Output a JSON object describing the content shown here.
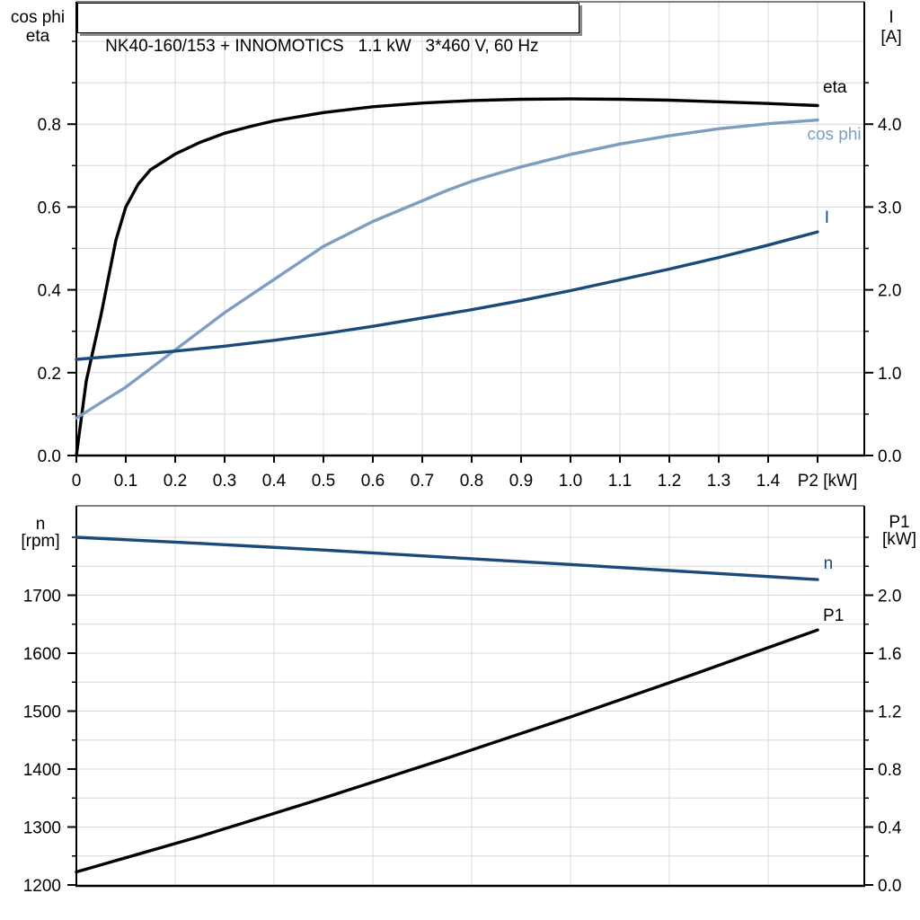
{
  "title_box": {
    "text": "NK40-160/153 + INNOMOTICS   1.1 kW   3*460 V, 60 Hz"
  },
  "colors": {
    "black": "#000000",
    "dark_blue": "#1b4a78",
    "light_blue": "#7e9ec1",
    "grid": "#d6d8db",
    "axis": "#000000",
    "shadow": "#8a8a8a",
    "background": "#ffffff"
  },
  "chart_data": [
    {
      "id": "p2",
      "type": "line",
      "title": "Motor performance vs output power",
      "x_axis": {
        "label": "P2 [kW]",
        "min": 0,
        "max": 1.595,
        "grid_step": 0.1,
        "grid_max": 1.5,
        "tick_step": 0.1,
        "tick_max": 1.5,
        "tick_labels": [
          {
            "v": 0,
            "t": "0"
          },
          {
            "v": 0.1,
            "t": "0.1"
          },
          {
            "v": 0.2,
            "t": "0.2"
          },
          {
            "v": 0.3,
            "t": "0.3"
          },
          {
            "v": 0.4,
            "t": "0.4"
          },
          {
            "v": 0.5,
            "t": "0.5"
          },
          {
            "v": 0.6,
            "t": "0.6"
          },
          {
            "v": 0.7,
            "t": "0.7"
          },
          {
            "v": 0.8,
            "t": "0.8"
          },
          {
            "v": 0.9,
            "t": "0.9"
          },
          {
            "v": 1.0,
            "t": "1.0"
          },
          {
            "v": 1.1,
            "t": "1.1"
          },
          {
            "v": 1.2,
            "t": "1.2"
          },
          {
            "v": 1.3,
            "t": "1.3"
          },
          {
            "v": 1.4,
            "t": "1.4"
          }
        ],
        "axis_label_at": 1.52
      },
      "left_axis": {
        "title_lines": [
          "cos phi",
          "eta"
        ],
        "min": 0,
        "max": 1.08,
        "major_step": 0.2,
        "minor_step": 0.1,
        "minor_max": 1.0,
        "grid_min": 0.1,
        "grid_max": 1.0,
        "grid_step": 0.1,
        "tick_labels": [
          {
            "v": 0,
            "t": "0.0"
          },
          {
            "v": 0.2,
            "t": "0.2"
          },
          {
            "v": 0.4,
            "t": "0.4"
          },
          {
            "v": 0.6,
            "t": "0.6"
          },
          {
            "v": 0.8,
            "t": "0.8"
          }
        ]
      },
      "right_axis": {
        "title_lines": [
          "I",
          "[A]"
        ],
        "min": 0,
        "max": 5.4,
        "major_step": 1.0,
        "minor_step": 0.5,
        "minor_max": 4.5,
        "tick_labels": [
          {
            "v": 0,
            "t": "0.0"
          },
          {
            "v": 1,
            "t": "1.0"
          },
          {
            "v": 2,
            "t": "2.0"
          },
          {
            "v": 3,
            "t": "3.0"
          },
          {
            "v": 4,
            "t": "4.0"
          }
        ]
      },
      "series": [
        {
          "name": "eta",
          "label": "eta",
          "axis": "left",
          "color": "#000000",
          "label_at": [
            1.511,
            0.876
          ],
          "points": [
            [
              0,
              0
            ],
            [
              0.02,
              0.18
            ],
            [
              0.05,
              0.34
            ],
            [
              0.08,
              0.52
            ],
            [
              0.1,
              0.6
            ],
            [
              0.125,
              0.655
            ],
            [
              0.15,
              0.69
            ],
            [
              0.2,
              0.728
            ],
            [
              0.25,
              0.756
            ],
            [
              0.3,
              0.778
            ],
            [
              0.35,
              0.794
            ],
            [
              0.4,
              0.808
            ],
            [
              0.45,
              0.818
            ],
            [
              0.5,
              0.828
            ],
            [
              0.6,
              0.842
            ],
            [
              0.7,
              0.851
            ],
            [
              0.8,
              0.857
            ],
            [
              0.9,
              0.86
            ],
            [
              1.0,
              0.861
            ],
            [
              1.1,
              0.86
            ],
            [
              1.2,
              0.858
            ],
            [
              1.3,
              0.854
            ],
            [
              1.4,
              0.85
            ],
            [
              1.5,
              0.845
            ]
          ]
        },
        {
          "name": "cos phi",
          "label": "cos phi",
          "axis": "left",
          "color": "#7e9ec1",
          "label_at": [
            1.479,
            0.762
          ],
          "points": [
            [
              0,
              0.09
            ],
            [
              0.05,
              0.128
            ],
            [
              0.1,
              0.165
            ],
            [
              0.15,
              0.21
            ],
            [
              0.2,
              0.255
            ],
            [
              0.25,
              0.3
            ],
            [
              0.3,
              0.345
            ],
            [
              0.35,
              0.385
            ],
            [
              0.4,
              0.425
            ],
            [
              0.45,
              0.465
            ],
            [
              0.5,
              0.505
            ],
            [
              0.55,
              0.535
            ],
            [
              0.6,
              0.565
            ],
            [
              0.65,
              0.59
            ],
            [
              0.7,
              0.615
            ],
            [
              0.75,
              0.64
            ],
            [
              0.8,
              0.662
            ],
            [
              0.85,
              0.68
            ],
            [
              0.9,
              0.697
            ],
            [
              0.95,
              0.712
            ],
            [
              1.0,
              0.727
            ],
            [
              1.1,
              0.752
            ],
            [
              1.2,
              0.772
            ],
            [
              1.3,
              0.789
            ],
            [
              1.4,
              0.801
            ],
            [
              1.5,
              0.81
            ]
          ]
        },
        {
          "name": "I",
          "label": "I",
          "axis": "right",
          "color": "#1b4a78",
          "label_at": [
            1.514,
            2.81
          ],
          "points": [
            [
              0,
              1.16
            ],
            [
              0.1,
              1.21
            ],
            [
              0.2,
              1.26
            ],
            [
              0.3,
              1.32
            ],
            [
              0.4,
              1.39
            ],
            [
              0.5,
              1.47
            ],
            [
              0.6,
              1.56
            ],
            [
              0.7,
              1.66
            ],
            [
              0.8,
              1.76
            ],
            [
              0.9,
              1.87
            ],
            [
              1.0,
              1.99
            ],
            [
              1.1,
              2.12
            ],
            [
              1.2,
              2.25
            ],
            [
              1.3,
              2.39
            ],
            [
              1.4,
              2.54
            ],
            [
              1.5,
              2.7
            ]
          ]
        }
      ]
    },
    {
      "id": "np1",
      "type": "line",
      "title": "Speed and input power vs output power",
      "x_axis": {
        "label": "",
        "min": 0,
        "max": 1.595,
        "grid_step": 0.2,
        "grid_max": 1.4,
        "tick_step": 0,
        "tick_max": 0,
        "tick_labels": [],
        "axis_label_at": null
      },
      "left_axis": {
        "title_lines": [
          "n",
          "[rpm]"
        ],
        "min": 1200,
        "max": 1854,
        "major_step": 100,
        "minor_step": 50,
        "minor_max": 1800,
        "grid_min": 1250,
        "grid_max": 1800,
        "grid_step": 50,
        "tick_labels": [
          {
            "v": 1200,
            "t": "1200"
          },
          {
            "v": 1300,
            "t": "1300"
          },
          {
            "v": 1400,
            "t": "1400"
          },
          {
            "v": 1500,
            "t": "1500"
          },
          {
            "v": 1600,
            "t": "1600"
          },
          {
            "v": 1700,
            "t": "1700"
          }
        ]
      },
      "right_axis": {
        "title_lines": [
          "P1",
          "[kW]"
        ],
        "min": 0,
        "max": 2.62,
        "major_step": 0.4,
        "minor_step": 0.2,
        "minor_max": 2.4,
        "tick_labels": [
          {
            "v": 0,
            "t": "0.0"
          },
          {
            "v": 0.4,
            "t": "0.4"
          },
          {
            "v": 0.8,
            "t": "0.8"
          },
          {
            "v": 1.2,
            "t": "1.2"
          },
          {
            "v": 1.6,
            "t": "1.6"
          },
          {
            "v": 2.0,
            "t": "2.0"
          }
        ]
      },
      "series": [
        {
          "name": "n",
          "label": "n",
          "axis": "left",
          "color": "#1b4a78",
          "label_at": [
            1.512,
            1746
          ],
          "points": [
            [
              0,
              1800
            ],
            [
              0.25,
              1789.5
            ],
            [
              0.5,
              1778
            ],
            [
              0.75,
              1765.5
            ],
            [
              1.0,
              1753
            ],
            [
              1.25,
              1740
            ],
            [
              1.5,
              1727
            ]
          ]
        },
        {
          "name": "P1",
          "label": "P1",
          "axis": "right",
          "color": "#000000",
          "label_at": [
            1.511,
            1.823
          ],
          "points": [
            [
              0,
              0.09
            ],
            [
              0.25,
              0.335
            ],
            [
              0.5,
              0.6
            ],
            [
              0.75,
              0.875
            ],
            [
              1.0,
              1.16
            ],
            [
              1.25,
              1.455
            ],
            [
              1.5,
              1.76
            ]
          ]
        }
      ]
    }
  ]
}
